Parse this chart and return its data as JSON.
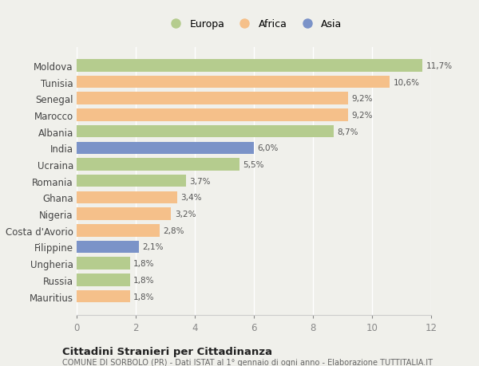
{
  "countries": [
    "Moldova",
    "Tunisia",
    "Senegal",
    "Marocco",
    "Albania",
    "India",
    "Ucraina",
    "Romania",
    "Ghana",
    "Nigeria",
    "Costa d'Avorio",
    "Filippine",
    "Ungheria",
    "Russia",
    "Mauritius"
  ],
  "values": [
    11.7,
    10.6,
    9.2,
    9.2,
    8.7,
    6.0,
    5.5,
    3.7,
    3.4,
    3.2,
    2.8,
    2.1,
    1.8,
    1.8,
    1.8
  ],
  "continents": [
    "Europa",
    "Africa",
    "Africa",
    "Africa",
    "Europa",
    "Asia",
    "Europa",
    "Europa",
    "Africa",
    "Africa",
    "Africa",
    "Asia",
    "Europa",
    "Europa",
    "Africa"
  ],
  "colors": {
    "Europa": "#b5cc8e",
    "Africa": "#f5c08a",
    "Asia": "#7b93c8"
  },
  "legend_labels": [
    "Europa",
    "Africa",
    "Asia"
  ],
  "legend_colors": [
    "#b5cc8e",
    "#f5c08a",
    "#7b93c8"
  ],
  "xlim": [
    0,
    12
  ],
  "xticks": [
    0,
    2,
    4,
    6,
    8,
    10,
    12
  ],
  "title": "Cittadini Stranieri per Cittadinanza",
  "subtitle": "COMUNE DI SORBOLO (PR) - Dati ISTAT al 1° gennaio di ogni anno - Elaborazione TUTTITALIA.IT",
  "background_color": "#f0f0eb",
  "bar_height": 0.75
}
